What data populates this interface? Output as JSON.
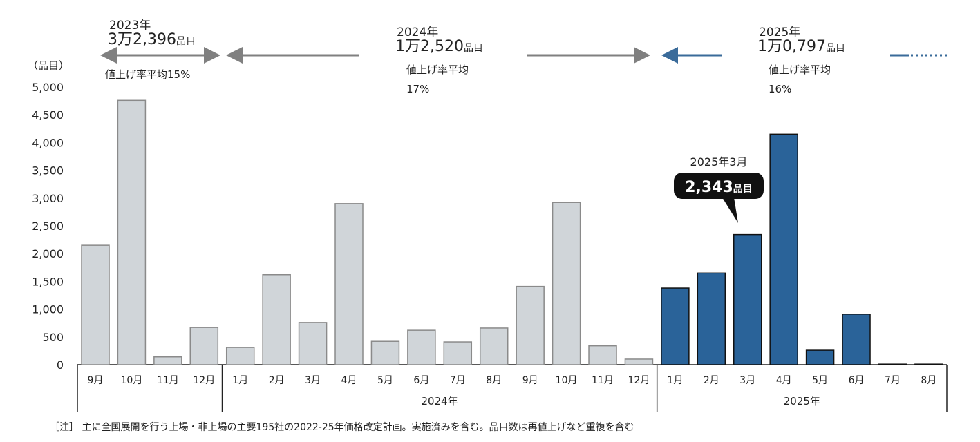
{
  "chart_data": {
    "type": "bar",
    "ylabel": "（品目）",
    "ylim": [
      0,
      5000
    ],
    "yticks": [
      "0",
      "500",
      "1,000",
      "1,500",
      "2,000",
      "2,500",
      "3,000",
      "3,500",
      "4,000",
      "4,500",
      "5,000"
    ],
    "grid": false,
    "categories": [
      "9月",
      "10月",
      "11月",
      "12月",
      "1月",
      "2月",
      "3月",
      "4月",
      "5月",
      "6月",
      "7月",
      "8月",
      "9月",
      "10月",
      "11月",
      "12月",
      "1月",
      "2月",
      "3月",
      "4月",
      "5月",
      "6月",
      "7月",
      "8月"
    ],
    "values": [
      2150,
      4760,
      140,
      670,
      310,
      1620,
      760,
      2900,
      420,
      620,
      410,
      660,
      1410,
      2920,
      340,
      100,
      1380,
      1650,
      2343,
      4150,
      260,
      910,
      10,
      10
    ],
    "year_of_bar": [
      "2023",
      "2023",
      "2023",
      "2023",
      "2024",
      "2024",
      "2024",
      "2024",
      "2024",
      "2024",
      "2024",
      "2024",
      "2024",
      "2024",
      "2024",
      "2024",
      "2025",
      "2025",
      "2025",
      "2025",
      "2025",
      "2025",
      "2025",
      "2025"
    ],
    "year_groups": [
      {
        "label": "",
        "count": 4
      },
      {
        "label": "2024年",
        "count": 12
      },
      {
        "label": "2025年",
        "count": 8
      }
    ],
    "colors": {
      "past": "#d0d5d9",
      "past_stroke": "#8a8a8a",
      "current": "#2a6399",
      "current_stroke": "#111111",
      "arrow_gray": "#808080",
      "arrow_blue": "#3a6b9a"
    },
    "annotations": [
      {
        "year": "2023年",
        "total": "3万2,396",
        "unit": "品目",
        "rate_label": "値上げ率平均",
        "rate": "15%"
      },
      {
        "year": "2024年",
        "total": "1万2,520",
        "unit": "品目",
        "rate_label": "値上げ率平均",
        "rate": "17%"
      },
      {
        "year": "2025年",
        "total": "1万0,797",
        "unit": "品目",
        "rate_label": "値上げ率平均",
        "rate": "16%"
      }
    ],
    "callout": {
      "title": "2025年3月",
      "value": "2,343",
      "unit": "品目"
    },
    "note": "［注］ 主に全国展開を行う上場・非上場の主要195社の2022-25年価格改定計画。実施済みを含む。品目数は再値上げなど重複を含む"
  }
}
